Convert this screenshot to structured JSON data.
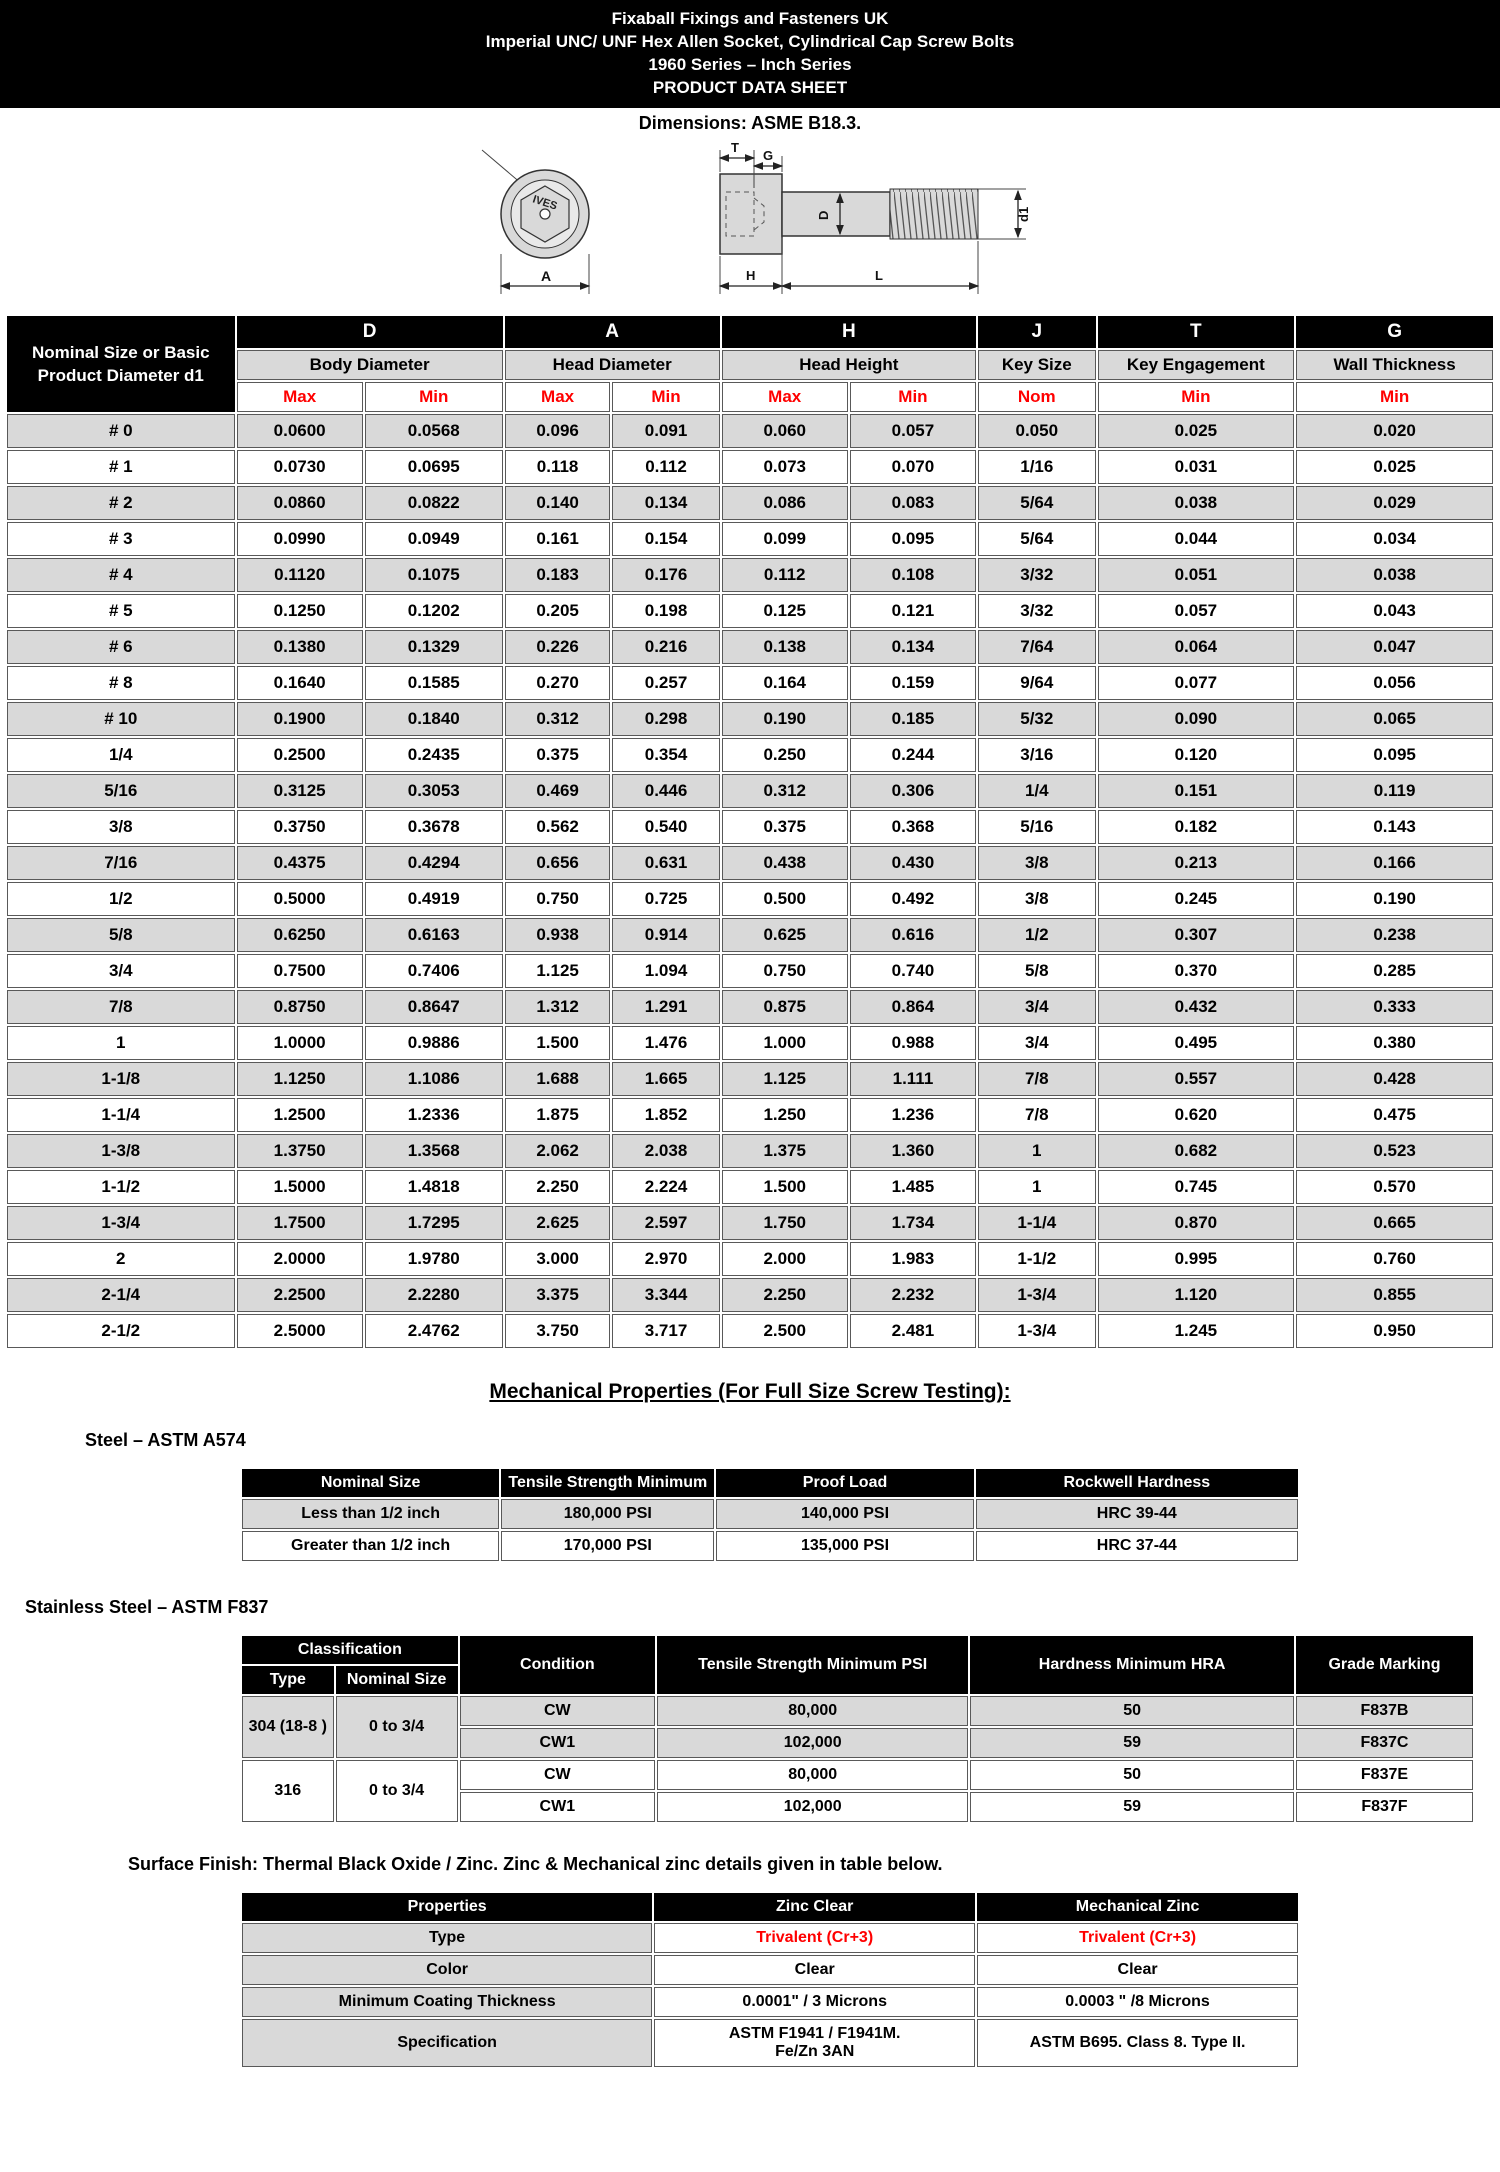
{
  "colors": {
    "banner_bg": "#000000",
    "row_gray": "#d9d9d9",
    "accent_red": "#ff0000",
    "drawing_fill": "#d9d9d9"
  },
  "header": {
    "line1": "Fixaball Fixings and Fasteners UK",
    "line2": "Imperial UNC/ UNF Hex Allen Socket, Cylindrical Cap Screw Bolts",
    "line3": "1960 Series – Inch Series",
    "line4": "PRODUCT DATA SHEET"
  },
  "dimensions_note": "Dimensions: ASME B18.3.",
  "drawing": {
    "head_marking": "IVES",
    "labels": {
      "T": "T",
      "G": "G",
      "D": "D",
      "d1": "d1",
      "A": "A",
      "H": "H",
      "L": "L"
    }
  },
  "dimension_table": {
    "nominal_header": "Nominal Size or Basic Product Diameter d1",
    "groups": [
      {
        "letter": "D",
        "name": "Body Diameter",
        "sub1": "Max",
        "sub2": "Min"
      },
      {
        "letter": "A",
        "name": "Head Diameter",
        "sub1": "Max",
        "sub2": "Min"
      },
      {
        "letter": "H",
        "name": "Head Height",
        "sub1": "Max",
        "sub2": "Min"
      },
      {
        "letter": "J",
        "name": "Key Size",
        "sub1": "Nom"
      },
      {
        "letter": "T",
        "name": "Key Engagement",
        "sub1": "Min"
      },
      {
        "letter": "G",
        "name": "Wall Thickness",
        "sub1": "Min"
      }
    ],
    "rows": [
      [
        "# 0",
        "0.0600",
        "0.0568",
        "0.096",
        "0.091",
        "0.060",
        "0.057",
        "0.050",
        "0.025",
        "0.020"
      ],
      [
        "# 1",
        "0.0730",
        "0.0695",
        "0.118",
        "0.112",
        "0.073",
        "0.070",
        "1/16",
        "0.031",
        "0.025"
      ],
      [
        "# 2",
        "0.0860",
        "0.0822",
        "0.140",
        "0.134",
        "0.086",
        "0.083",
        "5/64",
        "0.038",
        "0.029"
      ],
      [
        "# 3",
        "0.0990",
        "0.0949",
        "0.161",
        "0.154",
        "0.099",
        "0.095",
        "5/64",
        "0.044",
        "0.034"
      ],
      [
        "# 4",
        "0.1120",
        "0.1075",
        "0.183",
        "0.176",
        "0.112",
        "0.108",
        "3/32",
        "0.051",
        "0.038"
      ],
      [
        "# 5",
        "0.1250",
        "0.1202",
        "0.205",
        "0.198",
        "0.125",
        "0.121",
        "3/32",
        "0.057",
        "0.043"
      ],
      [
        "# 6",
        "0.1380",
        "0.1329",
        "0.226",
        "0.216",
        "0.138",
        "0.134",
        "7/64",
        "0.064",
        "0.047"
      ],
      [
        "# 8",
        "0.1640",
        "0.1585",
        "0.270",
        "0.257",
        "0.164",
        "0.159",
        "9/64",
        "0.077",
        "0.056"
      ],
      [
        "# 10",
        "0.1900",
        "0.1840",
        "0.312",
        "0.298",
        "0.190",
        "0.185",
        "5/32",
        "0.090",
        "0.065"
      ],
      [
        "1/4",
        "0.2500",
        "0.2435",
        "0.375",
        "0.354",
        "0.250",
        "0.244",
        "3/16",
        "0.120",
        "0.095"
      ],
      [
        "5/16",
        "0.3125",
        "0.3053",
        "0.469",
        "0.446",
        "0.312",
        "0.306",
        "1/4",
        "0.151",
        "0.119"
      ],
      [
        "3/8",
        "0.3750",
        "0.3678",
        "0.562",
        "0.540",
        "0.375",
        "0.368",
        "5/16",
        "0.182",
        "0.143"
      ],
      [
        "7/16",
        "0.4375",
        "0.4294",
        "0.656",
        "0.631",
        "0.438",
        "0.430",
        "3/8",
        "0.213",
        "0.166"
      ],
      [
        "1/2",
        "0.5000",
        "0.4919",
        "0.750",
        "0.725",
        "0.500",
        "0.492",
        "3/8",
        "0.245",
        "0.190"
      ],
      [
        "5/8",
        "0.6250",
        "0.6163",
        "0.938",
        "0.914",
        "0.625",
        "0.616",
        "1/2",
        "0.307",
        "0.238"
      ],
      [
        "3/4",
        "0.7500",
        "0.7406",
        "1.125",
        "1.094",
        "0.750",
        "0.740",
        "5/8",
        "0.370",
        "0.285"
      ],
      [
        "7/8",
        "0.8750",
        "0.8647",
        "1.312",
        "1.291",
        "0.875",
        "0.864",
        "3/4",
        "0.432",
        "0.333"
      ],
      [
        "1",
        "1.0000",
        "0.9886",
        "1.500",
        "1.476",
        "1.000",
        "0.988",
        "3/4",
        "0.495",
        "0.380"
      ],
      [
        "1-1/8",
        "1.1250",
        "1.1086",
        "1.688",
        "1.665",
        "1.125",
        "1.111",
        "7/8",
        "0.557",
        "0.428"
      ],
      [
        "1-1/4",
        "1.2500",
        "1.2336",
        "1.875",
        "1.852",
        "1.250",
        "1.236",
        "7/8",
        "0.620",
        "0.475"
      ],
      [
        "1-3/8",
        "1.3750",
        "1.3568",
        "2.062",
        "2.038",
        "1.375",
        "1.360",
        "1",
        "0.682",
        "0.523"
      ],
      [
        "1-1/2",
        "1.5000",
        "1.4818",
        "2.250",
        "2.224",
        "1.500",
        "1.485",
        "1",
        "0.745",
        "0.570"
      ],
      [
        "1-3/4",
        "1.7500",
        "1.7295",
        "2.625",
        "2.597",
        "1.750",
        "1.734",
        "1-1/4",
        "0.870",
        "0.665"
      ],
      [
        "2",
        "2.0000",
        "1.9780",
        "3.000",
        "2.970",
        "2.000",
        "1.983",
        "1-1/2",
        "0.995",
        "0.760"
      ],
      [
        "2-1/4",
        "2.2500",
        "2.2280",
        "3.375",
        "3.344",
        "2.250",
        "2.232",
        "1-3/4",
        "1.120",
        "0.855"
      ],
      [
        "2-1/2",
        "2.5000",
        "2.4762",
        "3.750",
        "3.717",
        "2.500",
        "2.481",
        "1-3/4",
        "1.245",
        "0.950"
      ]
    ]
  },
  "mechanical_heading": "Mechanical Properties (For Full Size Screw Testing):",
  "steel": {
    "title": "Steel – ASTM A574",
    "headers": [
      "Nominal Size",
      "Tensile Strength Minimum",
      "Proof Load",
      "Rockwell Hardness"
    ],
    "rows": [
      [
        "Less than 1/2 inch",
        "180,000 PSI",
        "140,000 PSI",
        "HRC 39-44"
      ],
      [
        "Greater than 1/2 inch",
        "170,000 PSI",
        "135,000 PSI",
        "HRC 37-44"
      ]
    ]
  },
  "stainless": {
    "title": "Stainless Steel – ASTM F837",
    "classification_header": "Classification",
    "headers": {
      "type": "Type",
      "nominal": "Nominal Size",
      "condition": "Condition",
      "tensile": "Tensile Strength Minimum PSI",
      "hardness": "Hardness Minimum HRA",
      "grade": "Grade Marking"
    },
    "groups": [
      {
        "type": "304 (18-8 )",
        "nominal": "0 to 3/4",
        "shade": "gray",
        "rows": [
          [
            "CW",
            "80,000",
            "50",
            "F837B"
          ],
          [
            "CW1",
            "102,000",
            "59",
            "F837C"
          ]
        ]
      },
      {
        "type": "316",
        "nominal": "0 to 3/4",
        "shade": "white",
        "rows": [
          [
            "CW",
            "80,000",
            "50",
            "F837E"
          ],
          [
            "CW1",
            "102,000",
            "59",
            "F837F"
          ]
        ]
      }
    ]
  },
  "surface_finish": {
    "note": "Surface Finish: Thermal Black Oxide / Zinc. Zinc & Mechanical zinc details given in table below.",
    "headers": [
      "Properties",
      "Zinc Clear",
      "Mechanical Zinc"
    ],
    "rows": [
      {
        "label": "Type",
        "zinc": "Trivalent (Cr+3)",
        "mech": "Trivalent (Cr+3)",
        "red": true
      },
      {
        "label": "Color",
        "zinc": "Clear",
        "mech": "Clear"
      },
      {
        "label": "Minimum Coating Thickness",
        "zinc": "0.0001\" / 3 Microns",
        "mech": "0.0003 \" /8 Microns"
      },
      {
        "label": "Specification",
        "zinc": "ASTM F1941 / F1941M.\nFe/Zn 3AN",
        "mech": "ASTM B695. Class 8. Type II."
      }
    ]
  }
}
